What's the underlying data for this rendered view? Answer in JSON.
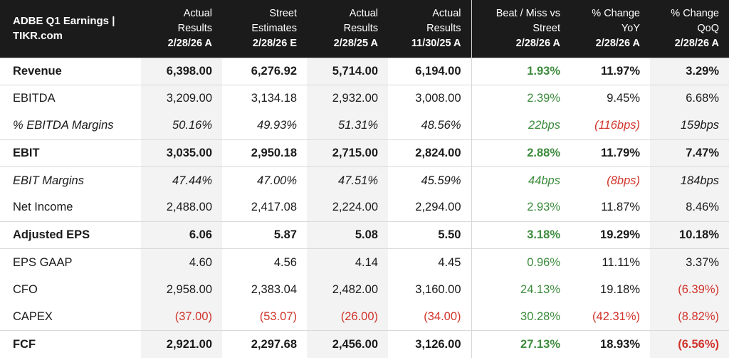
{
  "chart_data": {
    "type": "table",
    "title": "ADBE Q1 Earnings | TIKR.com",
    "columns": [
      {
        "line1": "Actual",
        "line2": "Results",
        "date": "2/28/26 A"
      },
      {
        "line1": "Street",
        "line2": "Estimates",
        "date": "2/28/26 E"
      },
      {
        "line1": "Actual",
        "line2": "Results",
        "date": "2/28/25 A"
      },
      {
        "line1": "Actual",
        "line2": "Results",
        "date": "11/30/25 A"
      },
      {
        "line1": "Beat / Miss vs",
        "line2": "Street",
        "date": "2/28/26 A"
      },
      {
        "line1": "% Change",
        "line2": "YoY",
        "date": "2/28/26 A"
      },
      {
        "line1": "% Change",
        "line2": "QoQ",
        "date": "2/28/26 A"
      }
    ],
    "rows": [
      {
        "label": "Revenue",
        "style": "bold",
        "cells": [
          {
            "v": "6,398.00"
          },
          {
            "v": "6,276.92"
          },
          {
            "v": "5,714.00"
          },
          {
            "v": "6,194.00"
          },
          {
            "v": "1.93%",
            "tone": "green"
          },
          {
            "v": "11.97%"
          },
          {
            "v": "3.29%"
          }
        ]
      },
      {
        "label": "EBITDA",
        "style": "normal",
        "cells": [
          {
            "v": "3,209.00"
          },
          {
            "v": "3,134.18"
          },
          {
            "v": "2,932.00"
          },
          {
            "v": "3,008.00"
          },
          {
            "v": "2.39%",
            "tone": "green"
          },
          {
            "v": "9.45%"
          },
          {
            "v": "6.68%"
          }
        ]
      },
      {
        "label": "% EBITDA Margins",
        "style": "italic",
        "cells": [
          {
            "v": "50.16%"
          },
          {
            "v": "49.93%"
          },
          {
            "v": "51.31%"
          },
          {
            "v": "48.56%"
          },
          {
            "v": "22bps",
            "tone": "green"
          },
          {
            "v": "(116bps)",
            "tone": "red"
          },
          {
            "v": "159bps"
          }
        ]
      },
      {
        "label": "EBIT",
        "style": "bold",
        "cells": [
          {
            "v": "3,035.00"
          },
          {
            "v": "2,950.18"
          },
          {
            "v": "2,715.00"
          },
          {
            "v": "2,824.00"
          },
          {
            "v": "2.88%",
            "tone": "green"
          },
          {
            "v": "11.79%"
          },
          {
            "v": "7.47%"
          }
        ]
      },
      {
        "label": "EBIT Margins",
        "style": "italic",
        "cells": [
          {
            "v": "47.44%"
          },
          {
            "v": "47.00%"
          },
          {
            "v": "47.51%"
          },
          {
            "v": "45.59%"
          },
          {
            "v": "44bps",
            "tone": "green"
          },
          {
            "v": "(8bps)",
            "tone": "red"
          },
          {
            "v": "184bps"
          }
        ]
      },
      {
        "label": "Net Income",
        "style": "normal",
        "cells": [
          {
            "v": "2,488.00"
          },
          {
            "v": "2,417.08"
          },
          {
            "v": "2,224.00"
          },
          {
            "v": "2,294.00"
          },
          {
            "v": "2.93%",
            "tone": "green"
          },
          {
            "v": "11.87%"
          },
          {
            "v": "8.46%"
          }
        ]
      },
      {
        "label": "Adjusted EPS",
        "style": "bold",
        "cells": [
          {
            "v": "6.06"
          },
          {
            "v": "5.87"
          },
          {
            "v": "5.08"
          },
          {
            "v": "5.50"
          },
          {
            "v": "3.18%",
            "tone": "green"
          },
          {
            "v": "19.29%"
          },
          {
            "v": "10.18%"
          }
        ]
      },
      {
        "label": "EPS GAAP",
        "style": "normal",
        "cells": [
          {
            "v": "4.60"
          },
          {
            "v": "4.56"
          },
          {
            "v": "4.14"
          },
          {
            "v": "4.45"
          },
          {
            "v": "0.96%",
            "tone": "green"
          },
          {
            "v": "11.11%"
          },
          {
            "v": "3.37%"
          }
        ]
      },
      {
        "label": "CFO",
        "style": "normal",
        "cells": [
          {
            "v": "2,958.00"
          },
          {
            "v": "2,383.04"
          },
          {
            "v": "2,482.00"
          },
          {
            "v": "3,160.00"
          },
          {
            "v": "24.13%",
            "tone": "green"
          },
          {
            "v": "19.18%"
          },
          {
            "v": "(6.39%)",
            "tone": "red"
          }
        ]
      },
      {
        "label": "CAPEX",
        "style": "normal",
        "cells": [
          {
            "v": "(37.00)",
            "tone": "red"
          },
          {
            "v": "(53.07)",
            "tone": "red"
          },
          {
            "v": "(26.00)",
            "tone": "red"
          },
          {
            "v": "(34.00)",
            "tone": "red"
          },
          {
            "v": "30.28%",
            "tone": "green"
          },
          {
            "v": "(42.31%)",
            "tone": "red"
          },
          {
            "v": "(8.82%)",
            "tone": "red"
          }
        ]
      },
      {
        "label": "FCF",
        "style": "bold",
        "cells": [
          {
            "v": "2,921.00"
          },
          {
            "v": "2,297.68"
          },
          {
            "v": "2,456.00"
          },
          {
            "v": "3,126.00"
          },
          {
            "v": "27.13%",
            "tone": "green"
          },
          {
            "v": "18.93%"
          },
          {
            "v": "(6.56%)",
            "tone": "red"
          }
        ]
      }
    ],
    "colors": {
      "header_bg": "#1b1b1b",
      "positive": "#3d8b3d",
      "negative": "#d0342c",
      "shade": "#f3f3f3"
    }
  }
}
